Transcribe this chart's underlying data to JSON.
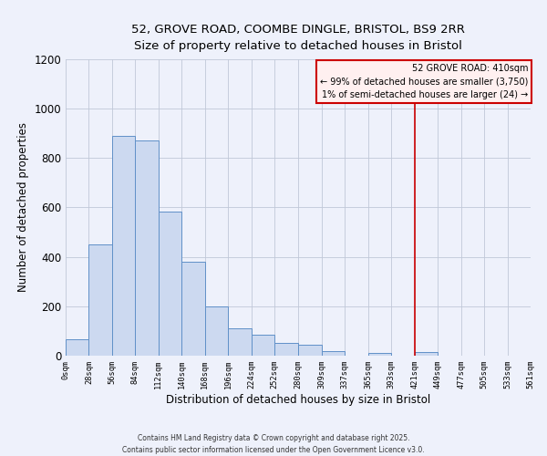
{
  "title_line1": "52, GROVE ROAD, COOMBE DINGLE, BRISTOL, BS9 2RR",
  "title_line2": "Size of property relative to detached houses in Bristol",
  "xlabel": "Distribution of detached houses by size in Bristol",
  "ylabel": "Number of detached properties",
  "bar_edges": [
    0,
    28,
    56,
    84,
    112,
    140,
    168,
    196,
    224,
    252,
    280,
    309,
    337,
    365,
    393,
    421,
    449,
    477,
    505,
    533,
    561
  ],
  "bar_heights": [
    65,
    450,
    890,
    870,
    585,
    380,
    200,
    110,
    85,
    50,
    45,
    20,
    0,
    12,
    0,
    15,
    0,
    0,
    0,
    0
  ],
  "bar_color": "#ccd9f0",
  "bar_edge_color": "#6090c8",
  "property_line_x": 421,
  "property_line_color": "#cc0000",
  "annotation_title": "52 GROVE ROAD: 410sqm",
  "annotation_line1": "← 99% of detached houses are smaller (3,750)",
  "annotation_line2": "1% of semi-detached houses are larger (24) →",
  "annotation_box_facecolor": "#fff0f0",
  "annotation_box_edgecolor": "#cc0000",
  "background_color": "#eef1fb",
  "grid_color": "#c0c8d8",
  "ylim": [
    0,
    1200
  ],
  "yticks": [
    0,
    200,
    400,
    600,
    800,
    1000,
    1200
  ],
  "title_fontsize": 9.5,
  "footnote1": "Contains HM Land Registry data © Crown copyright and database right 2025.",
  "footnote2": "Contains public sector information licensed under the Open Government Licence v3.0."
}
